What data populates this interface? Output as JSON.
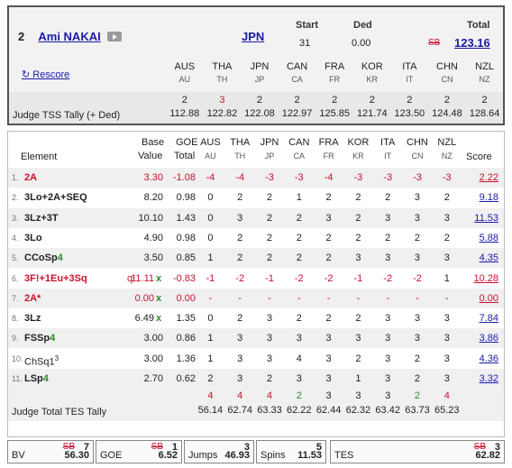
{
  "skater": {
    "rank": "2",
    "name": "Ami NAKAI",
    "nation": "JPN"
  },
  "summary": {
    "start_label": "Start",
    "start": "31",
    "ded_label": "Ded",
    "ded": "0.00",
    "total_label": "Total",
    "total_struck": "SB",
    "total": "123.16"
  },
  "rescore": "↻ Rescore",
  "judges": [
    {
      "code": "AUS",
      "short": "AU"
    },
    {
      "code": "THA",
      "short": "TH"
    },
    {
      "code": "JPN",
      "short": "JP"
    },
    {
      "code": "CAN",
      "short": "CA"
    },
    {
      "code": "FRA",
      "short": "FR"
    },
    {
      "code": "KOR",
      "short": "KR"
    },
    {
      "code": "ITA",
      "short": "IT"
    },
    {
      "code": "CHN",
      "short": "CN"
    },
    {
      "code": "NZL",
      "short": "NZ"
    }
  ],
  "tss": {
    "label": "Judge TSS Tally (+ Ded)",
    "ranks": [
      "2",
      "3",
      "2",
      "2",
      "2",
      "2",
      "2",
      "2",
      "2"
    ],
    "values": [
      "112.88",
      "122.82",
      "122.08",
      "122.97",
      "125.85",
      "121.74",
      "123.50",
      "124.48",
      "128.64"
    ]
  },
  "elements_header": {
    "element": "Element",
    "base": "Base",
    "value": "Value",
    "goe": "GOE",
    "total": "Total",
    "score": "Score"
  },
  "elements": [
    {
      "num": "1.",
      "name": "2A",
      "flag": "",
      "base": "3.30",
      "x": "",
      "goe": "-1.08",
      "j": [
        "-4",
        "-4",
        "-3",
        "-3",
        "-4",
        "-3",
        "-3",
        "-3",
        "-3"
      ],
      "score": "2.22"
    },
    {
      "num": "2.",
      "name": "3Lo+2A+SEQ",
      "flag": "",
      "base": "8.20",
      "x": "",
      "goe": "0.98",
      "j": [
        "0",
        "2",
        "2",
        "1",
        "2",
        "2",
        "2",
        "3",
        "2"
      ],
      "score": "9.18"
    },
    {
      "num": "3.",
      "name": "3Lz+3T",
      "flag": "",
      "base": "10.10",
      "x": "",
      "goe": "1.43",
      "j": [
        "0",
        "3",
        "2",
        "2",
        "3",
        "2",
        "3",
        "3",
        "3"
      ],
      "score": "11.53"
    },
    {
      "num": "4.",
      "name": "3Lo",
      "flag": "",
      "base": "4.90",
      "x": "",
      "goe": "0.98",
      "j": [
        "0",
        "2",
        "2",
        "2",
        "2",
        "2",
        "2",
        "2",
        "2"
      ],
      "score": "5.88"
    },
    {
      "num": "5.",
      "name": "CCoSp4",
      "flag": "",
      "base": "3.50",
      "x": "",
      "goe": "0.85",
      "j": [
        "1",
        "2",
        "2",
        "2",
        "2",
        "3",
        "3",
        "3",
        "3"
      ],
      "score": "4.35"
    },
    {
      "num": "6.",
      "name": "3F!+1Eu+3Sq",
      "flag": "q!",
      "base": "11.11",
      "x": "x",
      "goe": "-0.83",
      "j": [
        "-1",
        "-2",
        "-1",
        "-2",
        "-2",
        "-1",
        "-2",
        "-2",
        "1"
      ],
      "score": "10.28"
    },
    {
      "num": "7.",
      "name": "2A*",
      "flag": "",
      "base": "0.00",
      "x": "x",
      "goe": "0.00",
      "j": [
        "-",
        "-",
        "-",
        "-",
        "-",
        "-",
        "-",
        "-",
        "-"
      ],
      "score": "0.00"
    },
    {
      "num": "8.",
      "name": "3Lz",
      "flag": "",
      "base": "6.49",
      "x": "x",
      "goe": "1.35",
      "j": [
        "0",
        "2",
        "3",
        "2",
        "2",
        "2",
        "3",
        "3",
        "3"
      ],
      "score": "7.84"
    },
    {
      "num": "9.",
      "name": "FSSp4",
      "flag": "",
      "base": "3.00",
      "x": "",
      "goe": "0.86",
      "j": [
        "1",
        "3",
        "3",
        "3",
        "3",
        "3",
        "3",
        "3",
        "3"
      ],
      "score": "3.86"
    },
    {
      "num": "10.",
      "name": "ChSq1",
      "sup": "3",
      "flag": "",
      "base": "3.00",
      "x": "",
      "goe": "1.36",
      "j": [
        "1",
        "3",
        "3",
        "4",
        "3",
        "2",
        "3",
        "2",
        "3"
      ],
      "score": "4.36"
    },
    {
      "num": "11.",
      "name": "LSp4",
      "flag": "",
      "base": "2.70",
      "x": "",
      "goe": "0.62",
      "j": [
        "2",
        "3",
        "2",
        "3",
        "3",
        "1",
        "3",
        "2",
        "3"
      ],
      "score": "3.32"
    }
  ],
  "tes_tally": {
    "label": "Judge Total TES Tally",
    "ranks": [
      "4",
      "4",
      "4",
      "2",
      "3",
      "3",
      "3",
      "2",
      "4"
    ],
    "values": [
      "56.14",
      "62.74",
      "63.33",
      "62.22",
      "62.44",
      "62.32",
      "63.42",
      "63.73",
      "65.23"
    ]
  },
  "footer": {
    "bv": {
      "label": "BV",
      "rank_struck": "SB",
      "rank": "7",
      "value": "56.30"
    },
    "goe": {
      "label": "GOE",
      "rank_struck": "SB",
      "rank": "1",
      "value": "6.52"
    },
    "jumps": {
      "label": "Jumps",
      "rank": "3",
      "value": "46.93"
    },
    "spins": {
      "label": "Spins",
      "rank": "5",
      "value": "11.53"
    },
    "tes": {
      "label": "TES",
      "rank_struck": "SB",
      "rank": "3",
      "value": "62.82"
    }
  },
  "colors": {
    "link": "#1a1aa6",
    "red": "#c8102e",
    "green": "#2a8a2a"
  }
}
